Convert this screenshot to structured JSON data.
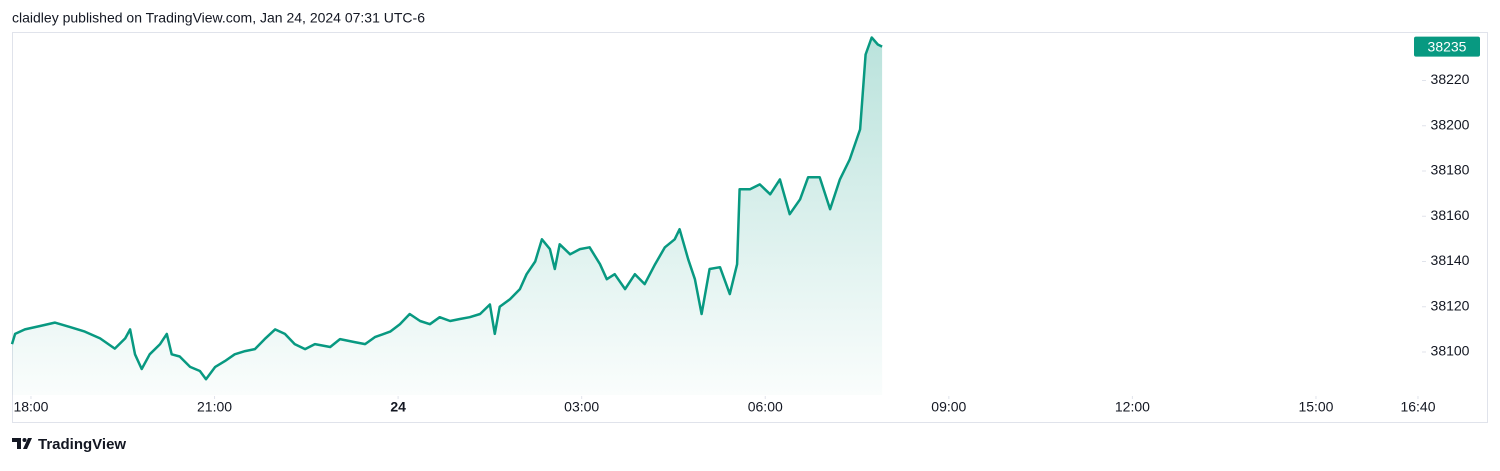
{
  "header": {
    "text": "claidley published on TradingView.com, Jan 24, 2024 07:31 UTC-6"
  },
  "footer": {
    "brand": "TradingView"
  },
  "chart_data": {
    "type": "line",
    "color": "#089981",
    "last_value": 38235,
    "x": [
      -0.31,
      -0.26,
      -0.1,
      0.15,
      0.39,
      0.64,
      0.88,
      1.13,
      1.37,
      1.54,
      1.62,
      1.7,
      1.81,
      1.94,
      2.11,
      2.22,
      2.3,
      2.43,
      2.6,
      2.76,
      2.86,
      3.01,
      3.17,
      3.33,
      3.5,
      3.66,
      3.82,
      3.99,
      4.15,
      4.31,
      4.48,
      4.64,
      4.89,
      5.05,
      5.29,
      5.46,
      5.62,
      5.87,
      6.03,
      6.19,
      6.36,
      6.52,
      6.68,
      6.85,
      7.01,
      7.17,
      7.34,
      7.5,
      7.58,
      7.66,
      7.83,
      7.99,
      8.1,
      8.24,
      8.35,
      8.48,
      8.56,
      8.64,
      8.81,
      8.97,
      9.13,
      9.3,
      9.41,
      9.54,
      9.71,
      9.87,
      10.03,
      10.2,
      10.36,
      10.52,
      10.6,
      10.74,
      10.85,
      10.96,
      11.09,
      11.26,
      11.42,
      11.54,
      11.58,
      11.75,
      11.91,
      12.08,
      12.24,
      12.4,
      12.57,
      12.7,
      12.89,
      13.06,
      13.22,
      13.38,
      13.55,
      13.64,
      13.74,
      13.84,
      13.91
    ],
    "values": [
      38103.5,
      38108,
      38110,
      38111.5,
      38113,
      38111,
      38109,
      38106,
      38101.5,
      38106,
      38110,
      38099,
      38092.5,
      38099,
      38103.5,
      38108,
      38099,
      38098,
      38093.4,
      38091.6,
      38088,
      38093.4,
      38096,
      38099,
      38100.4,
      38101.3,
      38105.7,
      38110,
      38108,
      38103.5,
      38101.3,
      38103.5,
      38102.2,
      38105.7,
      38104.4,
      38103.5,
      38106.6,
      38109,
      38112.3,
      38116.8,
      38113.7,
      38112.3,
      38115.4,
      38113.7,
      38114.6,
      38115.4,
      38116.8,
      38121,
      38108,
      38120,
      38123.4,
      38127.8,
      38134.4,
      38140,
      38149.8,
      38145.5,
      38136.7,
      38147.6,
      38143.2,
      38145.5,
      38146.3,
      38138.8,
      38132.2,
      38134.4,
      38127.8,
      38134.4,
      38130,
      38138.8,
      38146.3,
      38149.8,
      38154.3,
      38141,
      38132.2,
      38116.8,
      38136.7,
      38137.5,
      38125.6,
      38138.8,
      38171.9,
      38171.9,
      38174.1,
      38169.7,
      38176.3,
      38160.9,
      38167.5,
      38177.2,
      38177.2,
      38163.1,
      38176.3,
      38185.1,
      38198.4,
      38231.5,
      38239,
      38235.9,
      38235
    ],
    "xlim": [
      -0.31,
      22.7
    ],
    "xticks": [
      {
        "value": 0,
        "label": "18:00"
      },
      {
        "value": 3,
        "label": "21:00"
      },
      {
        "value": 6,
        "label": "24"
      },
      {
        "value": 9,
        "label": "03:00"
      },
      {
        "value": 12,
        "label": "06:00"
      },
      {
        "value": 15,
        "label": "09:00"
      },
      {
        "value": 18,
        "label": "12:00"
      },
      {
        "value": 21,
        "label": "15:00"
      },
      {
        "value": 22.667,
        "label": "16:40"
      }
    ],
    "ylim": [
      38081,
      38241
    ],
    "yticks": [
      38100,
      38120,
      38140,
      38160,
      38180,
      38200,
      38220
    ]
  }
}
